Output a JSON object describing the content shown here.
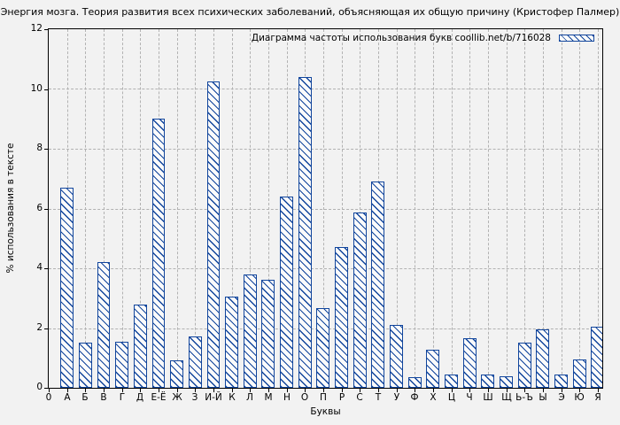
{
  "figure": {
    "title": "Энергия мозга. Теория развития всех психических заболеваний, объясняющая их общую причину (Кристофер Палмер)",
    "legend_label": "Диаграмма частоты использования букв coollib.net/b/716028",
    "xlabel": "Буквы",
    "ylabel": "% использования в тексте"
  },
  "chart_data": {
    "type": "bar",
    "title": "Энергия мозга. Теория развития всех психических заболеваний, объясняющая их общую причину (Кристофер Палмер)",
    "series_name": "Диаграмма частоты использования букв coollib.net/b/716028",
    "categories": [
      "А",
      "Б",
      "В",
      "Г",
      "Д",
      "Е-Ё",
      "Ж",
      "З",
      "И-Й",
      "К",
      "Л",
      "М",
      "Н",
      "О",
      "П",
      "Р",
      "С",
      "Т",
      "У",
      "Ф",
      "Х",
      "Ц",
      "Ч",
      "Ш",
      "Щ",
      "Ь-Ъ",
      "Ы",
      "Э",
      "Ю",
      "Я"
    ],
    "values": [
      6.7,
      1.5,
      4.2,
      1.55,
      2.8,
      9.0,
      0.92,
      1.73,
      10.25,
      3.05,
      3.78,
      3.62,
      6.4,
      10.4,
      2.66,
      4.72,
      5.86,
      6.9,
      2.1,
      0.35,
      1.28,
      0.45,
      1.65,
      0.45,
      0.38,
      1.5,
      1.95,
      0.45,
      0.95,
      2.05
    ],
    "xlabel": "Буквы",
    "ylabel": "% использования в тексте",
    "ylim": [
      0,
      12
    ],
    "y_ticks": [
      0,
      2,
      4,
      6,
      8,
      10,
      12
    ],
    "x_origin_tick_label": "0",
    "grid": true,
    "legend_position": "top-right-inside",
    "style": {
      "accent_color": "#11459c",
      "bar_fill": "#fbfbfb",
      "grid_color": "#b2b2b2",
      "background": "#f2f2f2",
      "hatch": "diagonal-down"
    }
  }
}
